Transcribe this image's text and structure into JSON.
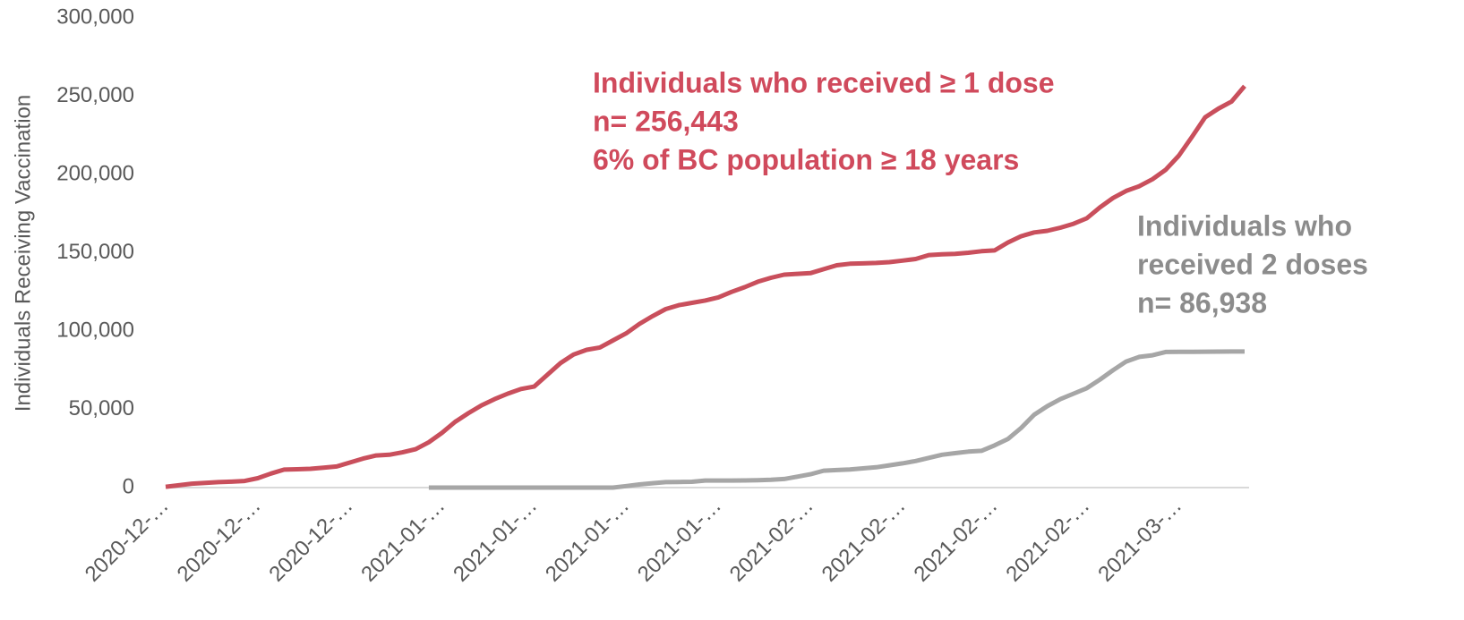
{
  "chart_data": {
    "type": "line",
    "ylabel": "Individuals Receiving Vaccination",
    "ylim": [
      0,
      300000
    ],
    "yticks": [
      {
        "value": 0,
        "label": "0"
      },
      {
        "value": 50000,
        "label": "50,000"
      },
      {
        "value": 100000,
        "label": "100,000"
      },
      {
        "value": 150000,
        "label": "150,000"
      },
      {
        "value": 200000,
        "label": "200,000"
      },
      {
        "value": 250000,
        "label": "250,000"
      },
      {
        "value": 300000,
        "label": "300,000"
      }
    ],
    "categories": [
      "2020-12-…",
      null,
      null,
      null,
      null,
      null,
      null,
      "2020-12-…",
      null,
      null,
      null,
      null,
      null,
      null,
      "2020-12-…",
      null,
      null,
      null,
      null,
      null,
      null,
      "2021-01-…",
      null,
      null,
      null,
      null,
      null,
      null,
      "2021-01-…",
      null,
      null,
      null,
      null,
      null,
      null,
      "2021-01-…",
      null,
      null,
      null,
      null,
      null,
      null,
      "2021-01-…",
      null,
      null,
      null,
      null,
      null,
      null,
      "2021-02-…",
      null,
      null,
      null,
      null,
      null,
      null,
      "2021-02-…",
      null,
      null,
      null,
      null,
      null,
      null,
      "2021-02-…",
      null,
      null,
      null,
      null,
      null,
      null,
      "2021-02-…",
      null,
      null,
      null,
      null,
      null,
      null,
      "2021-03-…",
      null,
      null,
      null,
      null,
      null
    ],
    "series": [
      {
        "color": "#c94f5c",
        "values": [
          500,
          1500,
          2500,
          3000,
          3500,
          3800,
          4200,
          6000,
          9000,
          11500,
          11700,
          12000,
          12700,
          13500,
          16000,
          18500,
          20500,
          21000,
          22500,
          24500,
          29000,
          35000,
          42000,
          47500,
          52500,
          56500,
          60000,
          63000,
          64500,
          72000,
          79500,
          85000,
          88000,
          89500,
          94000,
          98500,
          104500,
          109500,
          114000,
          116500,
          118000,
          119500,
          121500,
          125000,
          128000,
          131500,
          134000,
          136000,
          136500,
          137000,
          139500,
          142000,
          143000,
          143200,
          143500,
          144000,
          145000,
          146000,
          148500,
          149000,
          149300,
          150000,
          151000,
          151500,
          156500,
          160500,
          163000,
          164000,
          166000,
          168500,
          172000,
          179000,
          185000,
          189500,
          192500,
          197000,
          203000,
          212000,
          224000,
          236500,
          242000,
          246500,
          256443
        ]
      },
      {
        "color": "#a6a6a6",
        "values": [
          null,
          null,
          null,
          null,
          null,
          null,
          null,
          null,
          null,
          null,
          null,
          null,
          null,
          null,
          null,
          null,
          null,
          null,
          null,
          null,
          0,
          0,
          0,
          0,
          0,
          0,
          0,
          0,
          0,
          0,
          0,
          0,
          0,
          0,
          0,
          1000,
          2000,
          2800,
          3500,
          3600,
          3700,
          4500,
          4500,
          4500,
          4600,
          4700,
          5000,
          5500,
          7000,
          8500,
          10800,
          11200,
          11600,
          12300,
          13000,
          14200,
          15500,
          17000,
          19000,
          21000,
          22000,
          23000,
          23500,
          27000,
          31000,
          38000,
          46500,
          52000,
          56500,
          60000,
          63500,
          69000,
          75000,
          80500,
          83500,
          84500,
          86600,
          86700,
          86700,
          86800,
          86850,
          86900,
          86938
        ]
      }
    ],
    "annotations": [
      {
        "color": "#d04a5c",
        "lines": [
          "Individuals who received ≥ 1 dose",
          "n= 256,443",
          "6% of BC population ≥ 18 years"
        ]
      },
      {
        "color": "#8c8c8c",
        "lines": [
          "Individuals who",
          "received 2 doses",
          "n= 86,938"
        ]
      }
    ]
  }
}
